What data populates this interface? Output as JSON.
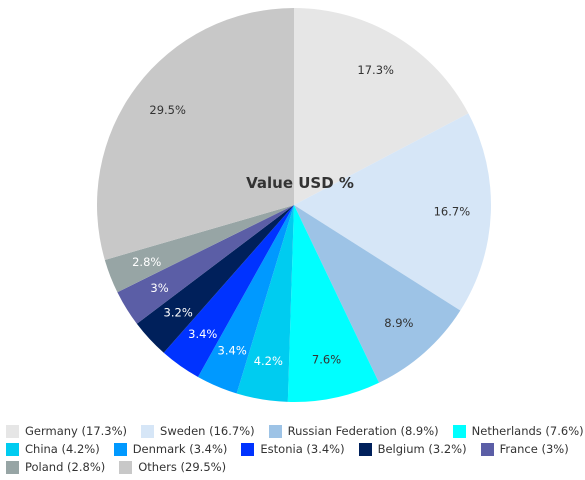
{
  "chart_data": {
    "type": "pie",
    "title": "Value USD %",
    "categories": [
      "Germany",
      "Sweden",
      "Russian Federation",
      "Netherlands",
      "China",
      "Denmark",
      "Estonia",
      "Belgium",
      "France",
      "Poland",
      "Others"
    ],
    "values": [
      17.3,
      16.7,
      8.9,
      7.6,
      4.2,
      3.4,
      3.4,
      3.2,
      3.0,
      2.8,
      29.5
    ],
    "slice_labels": [
      "17.3%",
      "16.7%",
      "8.9%",
      "7.6%",
      "4.2%",
      "3.4%",
      "3.4%",
      "3.2%",
      "3%",
      "2.8%",
      "29.5%"
    ],
    "legend_labels": [
      "Germany (17.3%)",
      "Sweden (16.7%)",
      "Russian Federation (8.9%)",
      "Netherlands (7.6%)",
      "China (4.2%)",
      "Denmark (3.4%)",
      "Estonia (3.4%)",
      "Belgium (3.2%)",
      "France (3%)",
      "Poland (2.8%)",
      "Others (29.5%)"
    ],
    "colors": [
      "#e6e6e6",
      "#d6e6f7",
      "#9dc3e6",
      "#00ffff",
      "#00ccf0",
      "#0099ff",
      "#0033ff",
      "#00205b",
      "#5b5ea6",
      "#97a5a5",
      "#c8c8c8"
    ],
    "label_colors": [
      "#333333",
      "#333333",
      "#333333",
      "#333333",
      "#ffffff",
      "#ffffff",
      "#ffffff",
      "#ffffff",
      "#ffffff",
      "#ffffff",
      "#333333"
    ],
    "legend_position": "bottom",
    "start_angle": "12 o'clock",
    "direction": "clockwise"
  }
}
